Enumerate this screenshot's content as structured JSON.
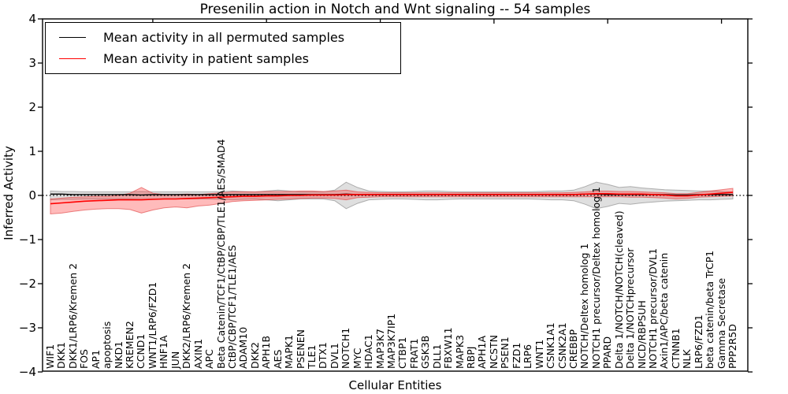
{
  "figure": {
    "title": "Presenilin action in Notch and Wnt signaling -- 54 samples",
    "xlabel": "Cellular Entities",
    "ylabel": "Inferred Activity"
  },
  "chart_data": {
    "type": "line",
    "title": "Presenilin action in Notch and Wnt signaling -- 54 samples",
    "xlabel": "Cellular Entities",
    "ylabel": "Inferred Activity",
    "ylim": [
      -4,
      4
    ],
    "yticks": [
      4,
      3,
      2,
      1,
      0,
      -1,
      -2,
      -3,
      -4
    ],
    "grid": false,
    "legend_position": "upper left",
    "zero_line": {
      "value": 0,
      "style": "dotted",
      "color": "#000000"
    },
    "categories": [
      "WIF1",
      "DKK1",
      "DKK1/LRP6/Kremen 2",
      "FOS",
      "AP1",
      "apoptosis",
      "NKD1",
      "KREMEN2",
      "CCND1",
      "WNT1/LRP6/FZD1",
      "HNF1A",
      "JUN",
      "DKK2/LRP6/Kremen 2",
      "AXIN1",
      "APC",
      "Beta Catenin/TCF1/CtBP/CBP/TLE1/AES/SMAD4",
      "CtBP/CBP/TCF1/TLE1/AES",
      "ADAM10",
      "DKK2",
      "APH1B",
      "AES",
      "MAPK1",
      "PSENEN",
      "TLE1",
      "DTX1",
      "DVL1",
      "NOTCH1",
      "MYC",
      "HDAC1",
      "MAP3K7",
      "MAP3K7IP1",
      "CTBP1",
      "FRAT1",
      "GSK3B",
      "DLL1",
      "FBXW11",
      "MAPK3",
      "RBPJ",
      "APH1A",
      "NCSTN",
      "PSEN1",
      "FZD1",
      "LRP6",
      "WNT1",
      "CSNK1A1",
      "CSNK2A1",
      "CREBBP",
      "NOTCH/Deltex homolog 1",
      "NOTCH1 precursor/Deltex homolog 1",
      "PPARD",
      "Delta 1/NOTCH/NOTCH(cleaved)",
      "Delta 1/NOTCHprecursor",
      "NICD/RBPSUH",
      "NOTCH1 precursor/DVL1",
      "Axin1/APC/beta catenin",
      "CTNNB1",
      "NLK",
      "LRP6/FZD1",
      "beta catenin/beta TrCP1",
      "Gamma Secretase",
      "PPP2R5D"
    ],
    "series": [
      {
        "name": "Mean activity in all permuted samples",
        "color": "#000000",
        "band_color": "rgba(130,130,130,0.26)",
        "band_edge": "rgba(120,120,120,0.55)",
        "values": [
          0.03,
          0.03,
          0.02,
          0.02,
          0.02,
          0.02,
          0.02,
          0.02,
          0.01,
          0.02,
          0.02,
          0.02,
          0.02,
          0.02,
          0.02,
          0.02,
          0.02,
          0.02,
          0.02,
          0.02,
          0.02,
          0.02,
          0.02,
          0.02,
          0.02,
          0.02,
          0.03,
          0.02,
          0.02,
          0.02,
          0.02,
          0.02,
          0.02,
          0.02,
          0.02,
          0.02,
          0.02,
          0.02,
          0.02,
          0.02,
          0.02,
          0.02,
          0.02,
          0.02,
          0.02,
          0.02,
          0.02,
          0.03,
          0.03,
          0.02,
          0.02,
          0.02,
          0.02,
          0.02,
          0.02,
          0.01,
          0.01,
          0.02,
          0.02,
          0.02,
          0.02
        ],
        "band_upper": [
          0.1,
          0.09,
          0.09,
          0.08,
          0.08,
          0.08,
          0.08,
          0.08,
          0.09,
          0.08,
          0.08,
          0.08,
          0.08,
          0.08,
          0.08,
          0.09,
          0.1,
          0.09,
          0.08,
          0.1,
          0.12,
          0.1,
          0.08,
          0.08,
          0.08,
          0.12,
          0.3,
          0.18,
          0.1,
          0.09,
          0.08,
          0.08,
          0.09,
          0.1,
          0.1,
          0.09,
          0.08,
          0.08,
          0.08,
          0.08,
          0.08,
          0.08,
          0.08,
          0.09,
          0.1,
          0.1,
          0.12,
          0.2,
          0.3,
          0.25,
          0.18,
          0.2,
          0.17,
          0.15,
          0.13,
          0.12,
          0.11,
          0.1,
          0.1,
          0.09,
          0.08
        ],
        "band_lower": [
          -0.1,
          -0.09,
          -0.09,
          -0.08,
          -0.08,
          -0.08,
          -0.08,
          -0.08,
          -0.09,
          -0.08,
          -0.08,
          -0.08,
          -0.08,
          -0.08,
          -0.08,
          -0.09,
          -0.1,
          -0.09,
          -0.08,
          -0.1,
          -0.12,
          -0.1,
          -0.08,
          -0.08,
          -0.08,
          -0.12,
          -0.3,
          -0.18,
          -0.1,
          -0.09,
          -0.08,
          -0.08,
          -0.09,
          -0.1,
          -0.1,
          -0.09,
          -0.08,
          -0.08,
          -0.08,
          -0.08,
          -0.08,
          -0.08,
          -0.08,
          -0.09,
          -0.1,
          -0.1,
          -0.12,
          -0.2,
          -0.3,
          -0.25,
          -0.18,
          -0.2,
          -0.17,
          -0.15,
          -0.13,
          -0.12,
          -0.11,
          -0.1,
          -0.1,
          -0.09,
          -0.08
        ]
      },
      {
        "name": "Mean activity in patient samples",
        "color": "#ff0000",
        "band_color": "rgba(255,30,30,0.30)",
        "band_edge": "rgba(225,70,70,0.65)",
        "values": [
          -0.19,
          -0.17,
          -0.15,
          -0.13,
          -0.12,
          -0.11,
          -0.1,
          -0.1,
          -0.1,
          -0.09,
          -0.08,
          -0.08,
          -0.07,
          -0.06,
          -0.05,
          -0.04,
          -0.03,
          -0.02,
          -0.02,
          -0.01,
          -0.01,
          0.0,
          0.0,
          0.01,
          0.01,
          0.01,
          0.02,
          0.02,
          0.02,
          0.02,
          0.02,
          0.02,
          0.02,
          0.02,
          0.02,
          0.02,
          0.02,
          0.02,
          0.02,
          0.02,
          0.02,
          0.02,
          0.02,
          0.02,
          0.02,
          0.02,
          0.02,
          0.03,
          0.04,
          0.04,
          0.03,
          0.03,
          0.03,
          0.02,
          0.01,
          -0.01,
          -0.01,
          0.01,
          0.03,
          0.05,
          0.07
        ],
        "band_upper": [
          -0.08,
          -0.06,
          -0.04,
          -0.03,
          -0.02,
          -0.02,
          0.0,
          0.05,
          0.18,
          0.05,
          0.02,
          0.02,
          0.03,
          0.02,
          0.04,
          0.06,
          0.08,
          0.08,
          0.08,
          0.09,
          0.09,
          0.09,
          0.1,
          0.1,
          0.09,
          0.1,
          0.12,
          0.08,
          0.07,
          0.06,
          0.06,
          0.06,
          0.06,
          0.06,
          0.06,
          0.06,
          0.06,
          0.06,
          0.06,
          0.06,
          0.06,
          0.06,
          0.06,
          0.06,
          0.06,
          0.06,
          0.07,
          0.08,
          0.1,
          0.1,
          0.09,
          0.09,
          0.08,
          0.07,
          0.06,
          0.04,
          0.04,
          0.07,
          0.1,
          0.13,
          0.16
        ],
        "band_lower": [
          -0.42,
          -0.4,
          -0.36,
          -0.33,
          -0.31,
          -0.3,
          -0.3,
          -0.32,
          -0.4,
          -0.33,
          -0.28,
          -0.26,
          -0.28,
          -0.24,
          -0.22,
          -0.18,
          -0.14,
          -0.12,
          -0.11,
          -0.1,
          -0.09,
          -0.08,
          -0.07,
          -0.06,
          -0.06,
          -0.07,
          -0.1,
          -0.05,
          -0.04,
          -0.03,
          -0.03,
          -0.03,
          -0.03,
          -0.03,
          -0.03,
          -0.03,
          -0.03,
          -0.03,
          -0.03,
          -0.03,
          -0.03,
          -0.03,
          -0.03,
          -0.03,
          -0.03,
          -0.03,
          -0.03,
          -0.03,
          -0.03,
          -0.03,
          -0.03,
          -0.04,
          -0.04,
          -0.05,
          -0.06,
          -0.08,
          -0.07,
          -0.04,
          -0.03,
          -0.02,
          -0.01
        ]
      }
    ]
  }
}
